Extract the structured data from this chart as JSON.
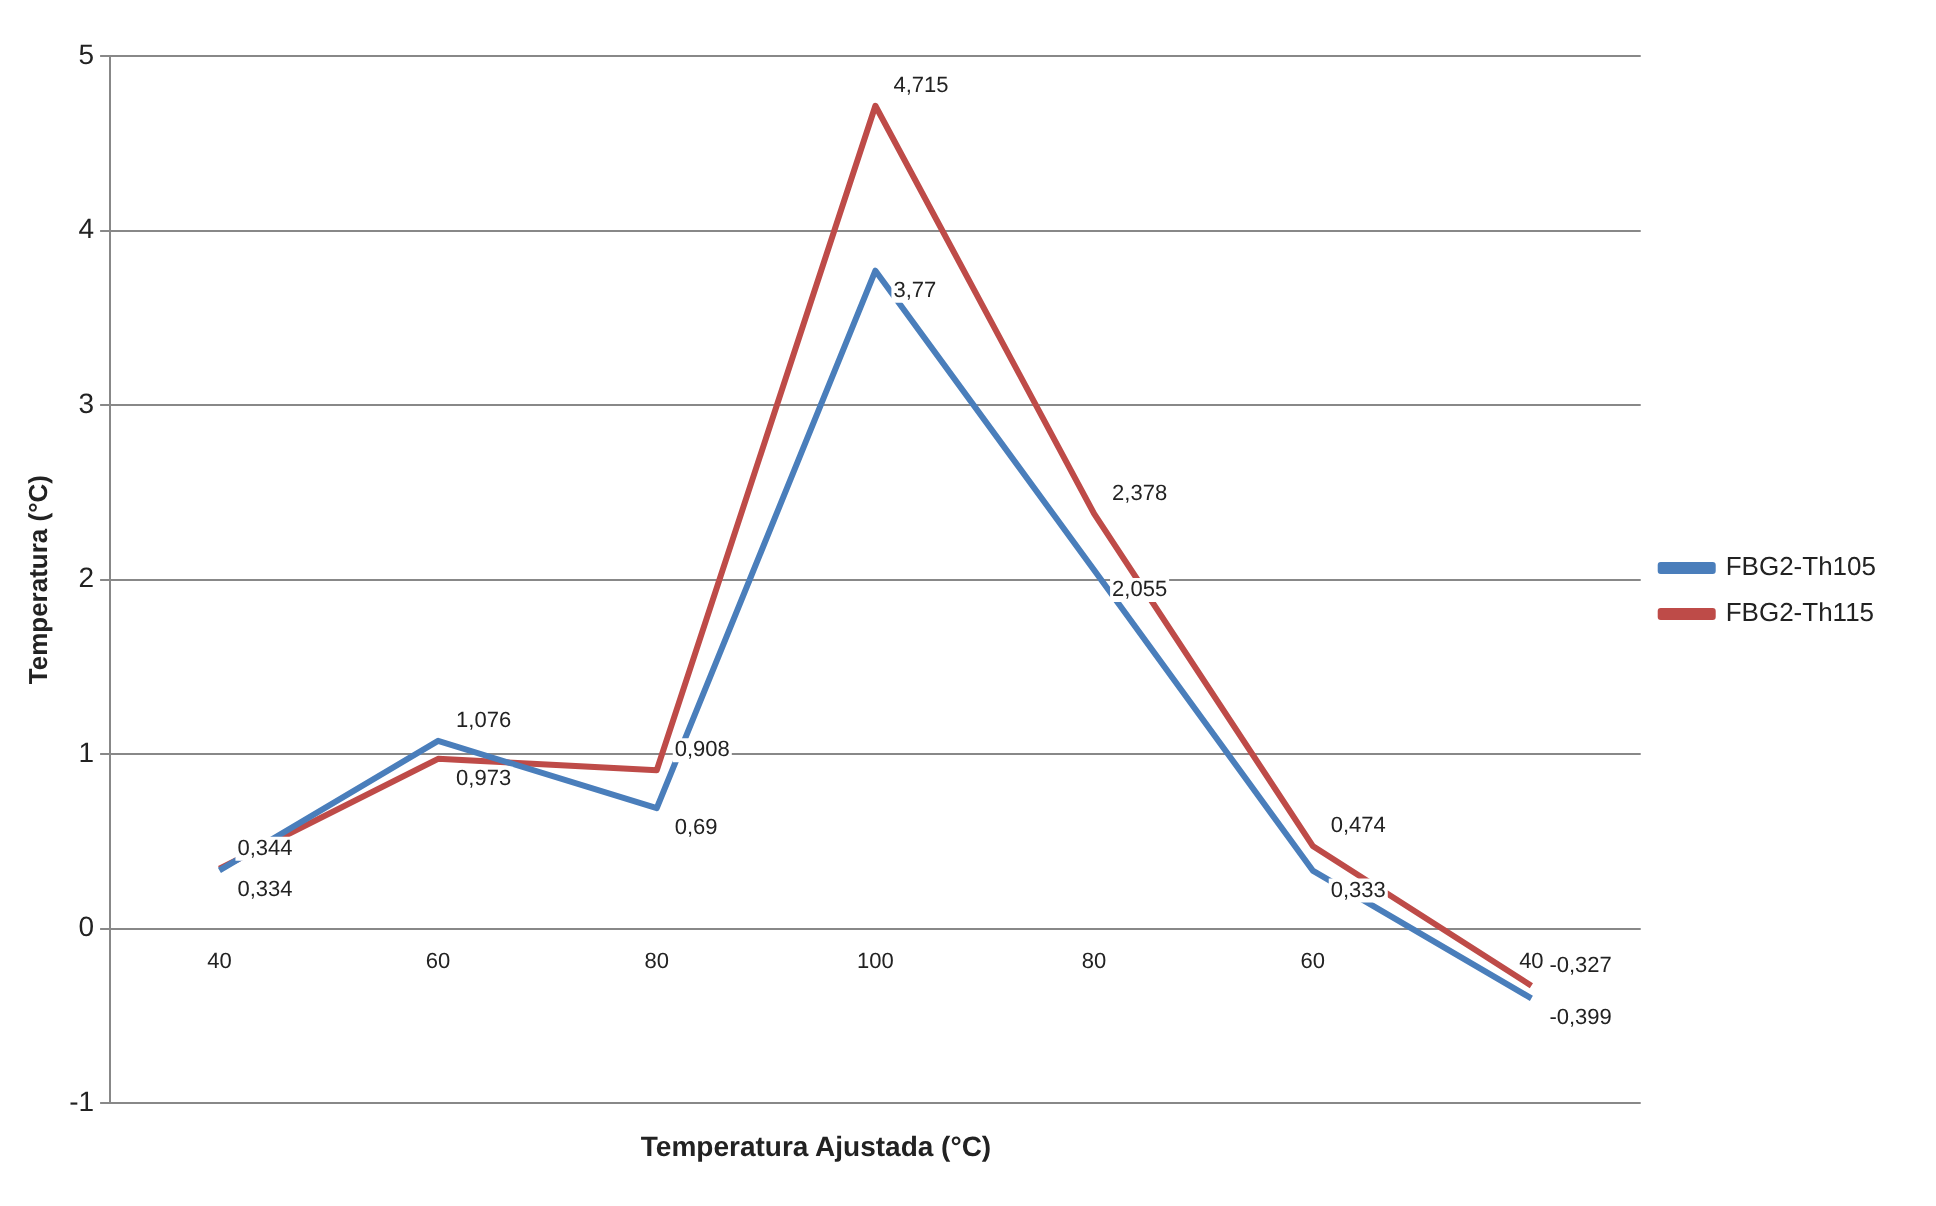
{
  "chart_data": {
    "type": "line",
    "xlabel": "Temperatura Ajustada (°C)",
    "ylabel": "Temperatura (°C)",
    "categories": [
      "40",
      "60",
      "80",
      "100",
      "80",
      "60",
      "40"
    ],
    "series": [
      {
        "name": "FBG2-Th105",
        "color": "#4a7ebb",
        "values": [
          0.334,
          1.076,
          0.69,
          3.77,
          2.055,
          0.333,
          -0.399
        ],
        "value_labels": [
          "0,334",
          "1,076",
          "0,69",
          "3,77",
          "2,055",
          "0,333",
          "-0,399"
        ]
      },
      {
        "name": "FBG2-Th115",
        "color": "#be4b48",
        "values": [
          0.344,
          0.973,
          0.908,
          4.715,
          2.378,
          0.474,
          -0.327
        ],
        "value_labels": [
          "0,344",
          "0,973",
          "0,908",
          "4,715",
          "2,378",
          "0,474",
          "-0,327"
        ]
      }
    ],
    "ylim": [
      -1,
      5
    ],
    "yticks": [
      -1,
      0,
      1,
      2,
      3,
      4,
      5
    ],
    "grid": "y",
    "legend": "right",
    "marker": "none",
    "line_style": "solid"
  }
}
